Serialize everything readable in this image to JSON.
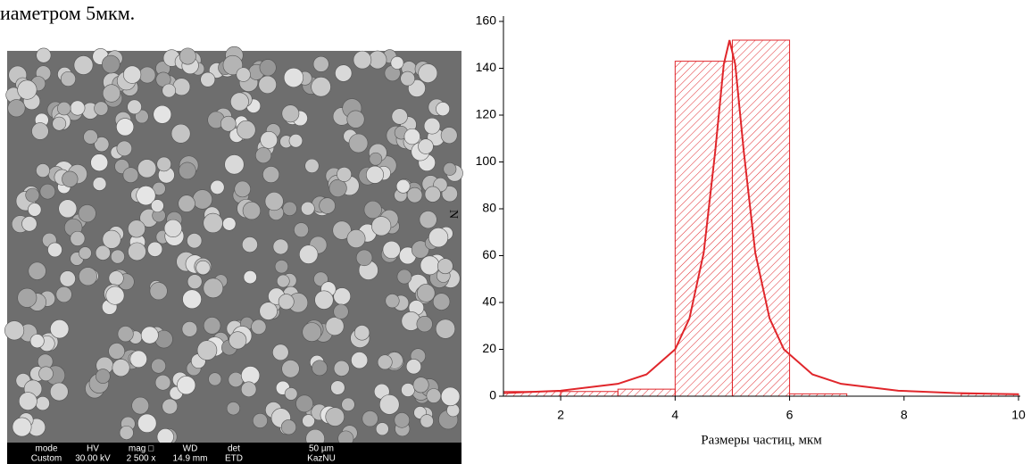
{
  "text_fragment": "иаметром 5мкм.",
  "sem": {
    "header": [
      "mode",
      "HV",
      "mag □",
      "WD",
      "det",
      "50 µm"
    ],
    "values": [
      "Custom",
      "30.00 kV",
      "2 500 x",
      "14.9 mm",
      "ETD",
      "KazNU"
    ]
  },
  "chart_data": {
    "type": "histogram",
    "xlabel": "Размеры частиц, мкм",
    "ylabel": "N",
    "bins": [
      1,
      2,
      3,
      4,
      5,
      6,
      7,
      8,
      9,
      10
    ],
    "values": [
      2,
      2,
      3,
      143,
      152,
      1,
      0,
      0,
      1
    ],
    "color": "#e0262b",
    "curve": {
      "x": [
        1,
        2,
        3,
        3.5,
        4,
        4.25,
        4.5,
        4.7,
        4.85,
        4.95,
        5.05,
        5.2,
        5.4,
        5.65,
        5.9,
        6.4,
        6.9,
        7.9,
        8.9,
        10
      ],
      "values": [
        1.32,
        2.35,
        5.28,
        9.29,
        20.0,
        33.2,
        61.3,
        104.4,
        141.7,
        152,
        141.7,
        104.4,
        61.3,
        33.2,
        20.0,
        9.29,
        5.28,
        2.35,
        1.32,
        0.81
      ],
      "color": "#e0262b"
    },
    "xlim": [
      1,
      10
    ],
    "xticks": [
      2,
      4,
      6,
      8,
      10
    ],
    "ylim": [
      0,
      160
    ],
    "yticks": [
      0,
      20,
      40,
      60,
      80,
      100,
      120,
      140,
      160
    ]
  }
}
